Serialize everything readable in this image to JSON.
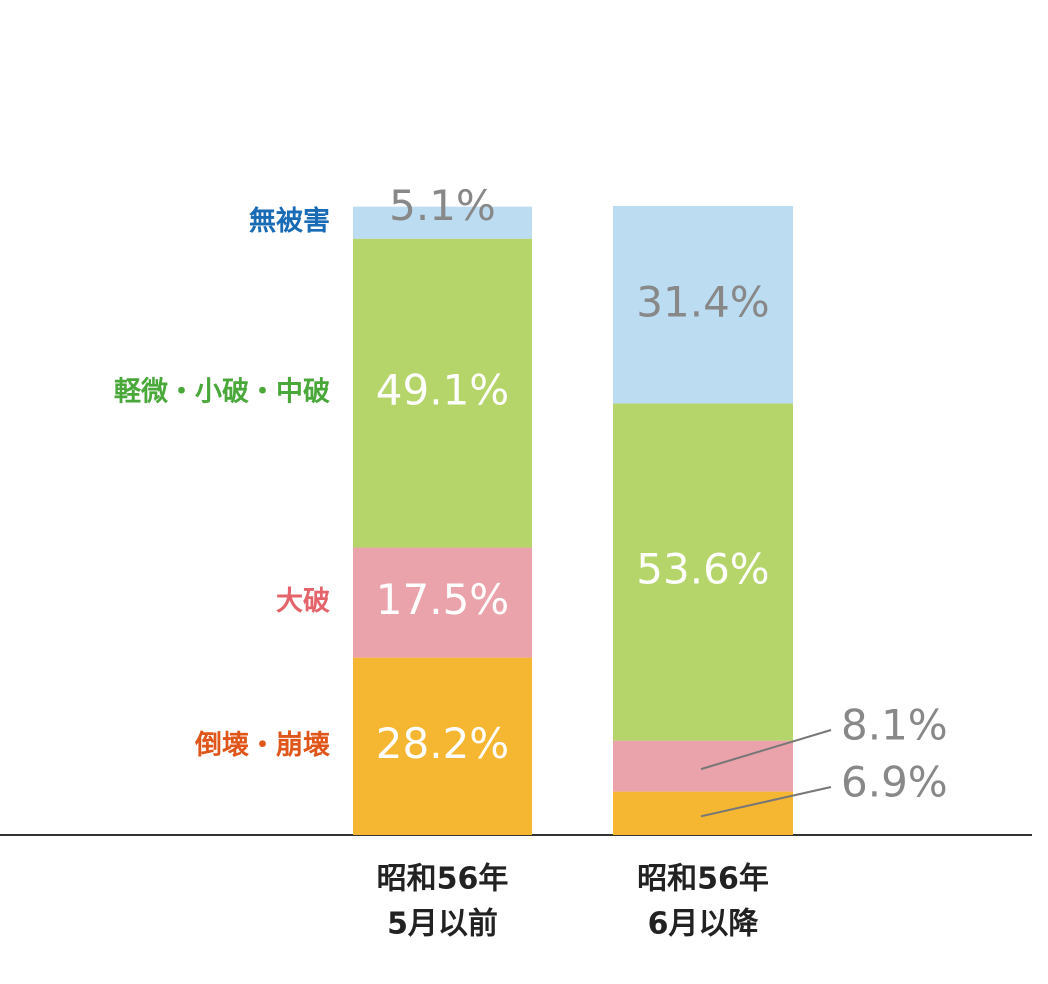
{
  "chart_data": {
    "type": "stacked_bar",
    "categories": [
      [
        "昭和56年",
        "5月以前"
      ],
      [
        "昭和56年",
        "6月以降"
      ]
    ],
    "ylim": [
      0,
      100
    ],
    "series": [
      {
        "name": "倒壊・崩壊",
        "color": "#f5b731",
        "name_color": "#e0561a",
        "values": [
          28.2,
          6.9
        ],
        "value_labels": [
          "28.2%",
          "6.9%"
        ]
      },
      {
        "name": "大破",
        "color": "#eaa3aa",
        "name_color": "#e5646b",
        "values": [
          17.5,
          8.1
        ],
        "value_labels": [
          "17.5%",
          "8.1%"
        ]
      },
      {
        "name": "軽微・小破・中破",
        "color": "#b5d56a",
        "name_color": "#4aa83a",
        "values": [
          49.1,
          53.6
        ],
        "value_labels": [
          "49.1%",
          "53.6%"
        ]
      },
      {
        "name": "無被害",
        "color": "#bcdcf2",
        "name_color": "#1a6bb5",
        "values": [
          5.1,
          31.4
        ],
        "value_labels": [
          "5.1%",
          "31.4%"
        ]
      }
    ]
  }
}
